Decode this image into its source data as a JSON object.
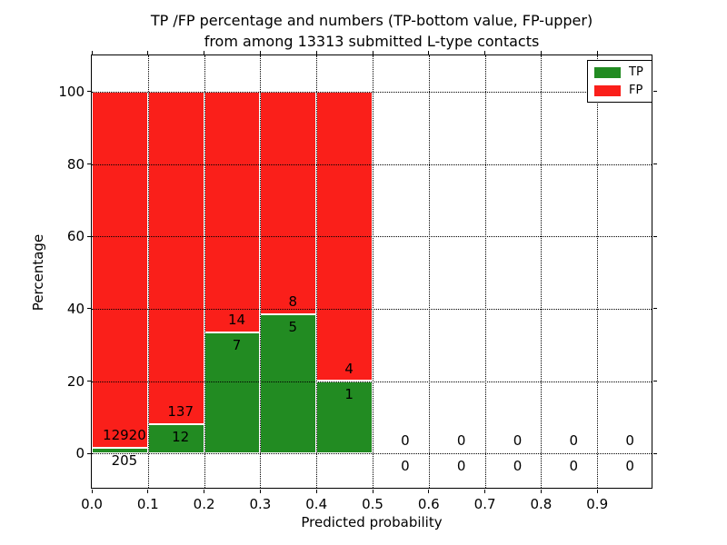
{
  "chart": {
    "title_line1": "TP /FP percentage and numbers (TP-bottom value, FP-upper)",
    "title_line2": "from among 13313 submitted L-type contacts",
    "xlabel": "Predicted probability",
    "ylabel": "Percentage"
  },
  "chart_data": {
    "type": "bar",
    "stacked": true,
    "title": "TP /FP percentage and numbers (TP-bottom value, FP-upper) from among 13313 submitted L-type contacts",
    "xlabel": "Predicted probability",
    "ylabel": "Percentage",
    "xlim": [
      0.0,
      1.0
    ],
    "ylim": [
      -10,
      110
    ],
    "x_tick_labels": [
      "0.0",
      "0.1",
      "0.2",
      "0.3",
      "0.4",
      "0.5",
      "0.6",
      "0.7",
      "0.8",
      "0.9"
    ],
    "x_ticks": [
      0.0,
      0.1,
      0.2,
      0.3,
      0.4,
      0.5,
      0.6,
      0.7,
      0.8,
      0.9
    ],
    "y_ticks": [
      0,
      20,
      40,
      60,
      80,
      100
    ],
    "grid": true,
    "grid_style": "dotted",
    "legend_position": "upper right",
    "total_contacts": 13313,
    "bin_width": 0.1,
    "bins_start": [
      0.0,
      0.1,
      0.2,
      0.3,
      0.4,
      0.5,
      0.6,
      0.7,
      0.8,
      0.9
    ],
    "series": [
      {
        "name": "TP",
        "color": "#228b22",
        "counts": [
          205,
          12,
          7,
          5,
          1,
          0,
          0,
          0,
          0,
          0
        ]
      },
      {
        "name": "FP",
        "color": "#fa1f1a",
        "counts": [
          12920,
          137,
          14,
          8,
          4,
          0,
          0,
          0,
          0,
          0
        ]
      }
    ],
    "tp_percent": [
      1.56,
      8.05,
      33.33,
      38.46,
      20.0,
      0,
      0,
      0,
      0,
      0
    ],
    "bar_total_percent": [
      100,
      100,
      100,
      100,
      100,
      0,
      0,
      0,
      0,
      0
    ],
    "label_note": "TP count drawn below green segment top, FP count drawn above green segment top"
  }
}
